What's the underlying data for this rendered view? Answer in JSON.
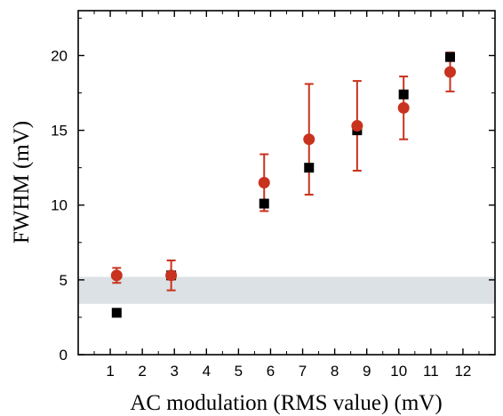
{
  "chart_data": {
    "type": "scatter",
    "title": "",
    "xlabel": "AC modulation (RMS value) (mV)",
    "ylabel": "FWHM (mV)",
    "xlim": [
      0,
      13
    ],
    "ylim": [
      0,
      23
    ],
    "xticks": [
      1,
      2,
      3,
      4,
      5,
      6,
      7,
      8,
      9,
      10,
      11,
      12
    ],
    "yticks": [
      0,
      5,
      10,
      15,
      20
    ],
    "grid": false,
    "legend": "none",
    "band": {
      "y_from": 3.4,
      "y_to": 5.2,
      "color": "#dbe1e4"
    },
    "series": [
      {
        "marker": "square",
        "color": "#000000",
        "points": [
          {
            "x": 1.2,
            "y": 2.8
          },
          {
            "x": 2.9,
            "y": 5.3
          },
          {
            "x": 5.8,
            "y": 10.1
          },
          {
            "x": 7.2,
            "y": 12.5
          },
          {
            "x": 8.7,
            "y": 15.0
          },
          {
            "x": 10.15,
            "y": 17.4
          },
          {
            "x": 11.6,
            "y": 19.9
          }
        ]
      },
      {
        "marker": "circle",
        "color": "#c8321e",
        "points": [
          {
            "x": 1.2,
            "y": 5.3,
            "err_low": 0.5,
            "err_high": 0.5
          },
          {
            "x": 2.9,
            "y": 5.3,
            "err_low": 1.0,
            "err_high": 1.0
          },
          {
            "x": 5.8,
            "y": 11.5,
            "err_low": 1.9,
            "err_high": 1.9
          },
          {
            "x": 7.2,
            "y": 14.4,
            "err_low": 3.7,
            "err_high": 3.7
          },
          {
            "x": 8.7,
            "y": 15.3,
            "err_low": 3.0,
            "err_high": 3.0
          },
          {
            "x": 10.15,
            "y": 16.5,
            "err_low": 2.1,
            "err_high": 2.1
          },
          {
            "x": 11.6,
            "y": 18.9,
            "err_low": 1.3,
            "err_high": 1.3
          }
        ]
      }
    ]
  }
}
